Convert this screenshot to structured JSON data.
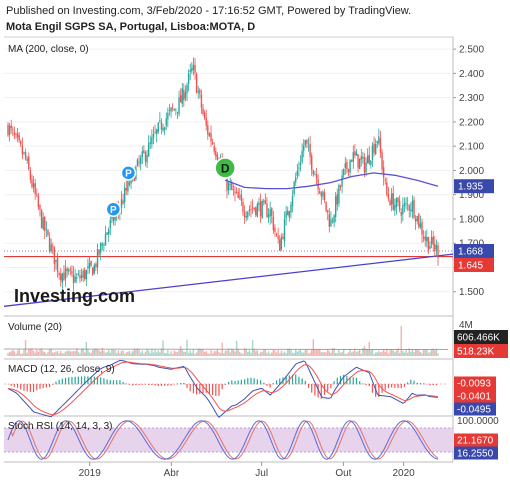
{
  "header": {
    "published": "Published on Investing.com, 3/Feb/2020 - 17:16:52 GMT, Powered by TradingView.",
    "symbol": "Mota Engil SGPS SA, Portugal, Lisboa:MOTA, D"
  },
  "watermark": "Investing.com",
  "colors": {
    "up": "#26a69a",
    "down": "#ef5350",
    "ma": "#5b4fd6",
    "trend": "#4b3fcf",
    "support": "#e53935",
    "macd": "#3f51b5",
    "signal": "#ef5350",
    "stoch_k": "#5b6bd6",
    "stoch_d": "#e5716d",
    "rsi_band": "#e8d3ec"
  },
  "chart_data": [
    {
      "type": "candlestick",
      "title": "MA (200, close, 0)",
      "x_labels": [
        "2019",
        "Abr",
        "Jul",
        "Out",
        "2020"
      ],
      "ylim": [
        1.4,
        2.55
      ],
      "y_ticks": [
        "1.500",
        "1.600",
        "1.700",
        "1.800",
        "1.900",
        "2.000",
        "2.100",
        "2.200",
        "2.300",
        "2.400",
        "2.500"
      ],
      "price_labels": [
        {
          "value": 1.935,
          "text": "1.935",
          "color": "#3949ab"
        },
        {
          "value": 1.668,
          "text": "1.668",
          "color": "#3949ab"
        },
        {
          "value": 1.645,
          "text": "1.645",
          "color": "#e53935"
        }
      ],
      "markers": [
        {
          "label": "P",
          "t": 0.245,
          "value": 1.84
        },
        {
          "label": "P",
          "t": 0.28,
          "value": 1.99
        },
        {
          "label": "D",
          "t": 0.505,
          "value": 2.01
        }
      ],
      "anchors": [
        {
          "t": 0.0,
          "v": 2.18
        },
        {
          "t": 0.04,
          "v": 2.05
        },
        {
          "t": 0.08,
          "v": 1.78
        },
        {
          "t": 0.12,
          "v": 1.58
        },
        {
          "t": 0.16,
          "v": 1.55
        },
        {
          "t": 0.2,
          "v": 1.6
        },
        {
          "t": 0.23,
          "v": 1.75
        },
        {
          "t": 0.26,
          "v": 1.85
        },
        {
          "t": 0.29,
          "v": 1.98
        },
        {
          "t": 0.33,
          "v": 2.1
        },
        {
          "t": 0.36,
          "v": 2.2
        },
        {
          "t": 0.4,
          "v": 2.28
        },
        {
          "t": 0.43,
          "v": 2.42
        },
        {
          "t": 0.46,
          "v": 2.18
        },
        {
          "t": 0.49,
          "v": 2.06
        },
        {
          "t": 0.51,
          "v": 1.94
        },
        {
          "t": 0.55,
          "v": 1.84
        },
        {
          "t": 0.58,
          "v": 1.85
        },
        {
          "t": 0.61,
          "v": 1.83
        },
        {
          "t": 0.63,
          "v": 1.68
        },
        {
          "t": 0.66,
          "v": 1.9
        },
        {
          "t": 0.69,
          "v": 2.12
        },
        {
          "t": 0.72,
          "v": 1.96
        },
        {
          "t": 0.75,
          "v": 1.78
        },
        {
          "t": 0.78,
          "v": 1.98
        },
        {
          "t": 0.8,
          "v": 2.06
        },
        {
          "t": 0.83,
          "v": 2.02
        },
        {
          "t": 0.86,
          "v": 2.14
        },
        {
          "t": 0.88,
          "v": 1.9
        },
        {
          "t": 0.91,
          "v": 1.84
        },
        {
          "t": 0.94,
          "v": 1.86
        },
        {
          "t": 0.97,
          "v": 1.72
        },
        {
          "t": 1.0,
          "v": 1.668
        }
      ],
      "ma_line": [
        {
          "t": 0.505,
          "v": 1.96
        },
        {
          "t": 0.55,
          "v": 1.93
        },
        {
          "t": 0.6,
          "v": 1.925
        },
        {
          "t": 0.65,
          "v": 1.925
        },
        {
          "t": 0.7,
          "v": 1.935
        },
        {
          "t": 0.75,
          "v": 1.95
        },
        {
          "t": 0.8,
          "v": 1.975
        },
        {
          "t": 0.85,
          "v": 1.99
        },
        {
          "t": 0.9,
          "v": 1.98
        },
        {
          "t": 0.95,
          "v": 1.96
        },
        {
          "t": 1.0,
          "v": 1.935
        }
      ],
      "trend_line": {
        "start_value": 1.44,
        "end_value": 1.655
      },
      "support_line": 1.645,
      "dotted_line": 1.668
    },
    {
      "type": "bar",
      "title": "Volume (20)",
      "y_ticks": [
        "4M"
      ],
      "price_labels": [
        {
          "text": "606.466K",
          "color": "#222222"
        },
        {
          "text": "518.23K",
          "color": "#e53935"
        }
      ]
    },
    {
      "type": "line",
      "title": "MACD (12, 26, close, 9)",
      "price_labels": [
        {
          "text": "-0.0093",
          "color": "#e53935"
        },
        {
          "text": "-0.0401",
          "color": "#e53935"
        },
        {
          "text": "-0.0495",
          "color": "#3949ab"
        }
      ]
    },
    {
      "type": "line",
      "title": "Stoch RSI (14, 14, 3, 3)",
      "y_ticks": [
        "100.0000"
      ],
      "price_labels": [
        {
          "text": "21.1670",
          "color": "#e53935"
        },
        {
          "text": "16.2550",
          "color": "#3949ab"
        }
      ]
    }
  ]
}
